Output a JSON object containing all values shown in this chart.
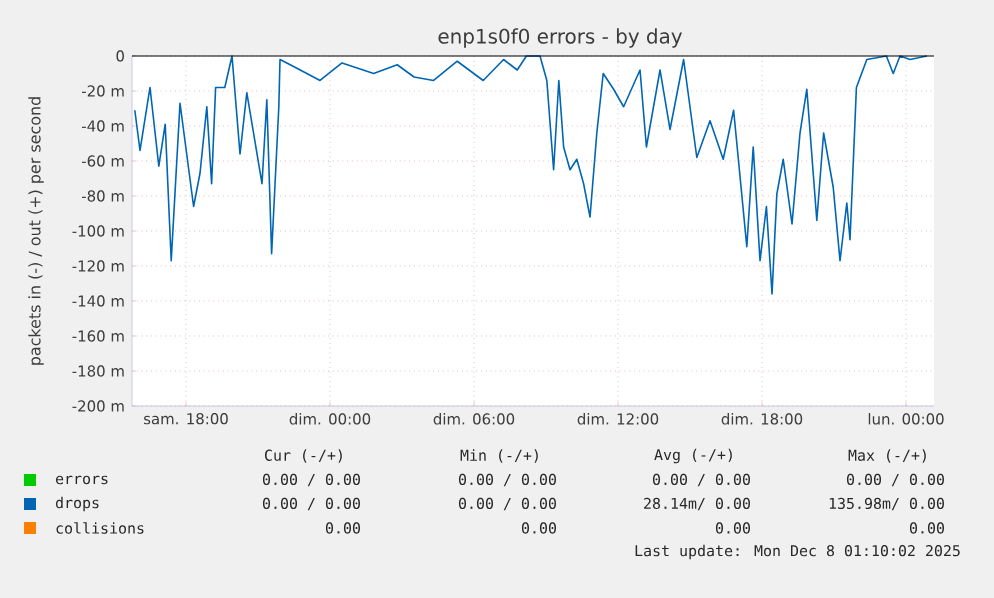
{
  "chart_data": {
    "type": "line",
    "title": "enp1s0f0 errors - by day",
    "ylabel": "packets in (-) / out (+) per second",
    "xlim": [
      "2025-12-06T15:45",
      "2025-12-08T01:10"
    ],
    "ylim": [
      -200,
      0
    ],
    "xticks": [
      {
        "value": "2025-12-06T18:00",
        "label": "sam. 18:00"
      },
      {
        "value": "2025-12-07T00:00",
        "label": "dim. 00:00"
      },
      {
        "value": "2025-12-07T06:00",
        "label": "dim. 06:00"
      },
      {
        "value": "2025-12-07T12:00",
        "label": "dim. 12:00"
      },
      {
        "value": "2025-12-07T18:00",
        "label": "dim. 18:00"
      },
      {
        "value": "2025-12-08T00:00",
        "label": "lun. 00:00"
      }
    ],
    "yticks": [
      0,
      {
        "value": -20,
        "label": "-20 m"
      },
      {
        "value": -40,
        "label": "-40 m"
      },
      {
        "value": -60,
        "label": "-60 m"
      },
      {
        "value": -80,
        "label": "-80 m"
      },
      {
        "value": -100,
        "label": "-100 m"
      },
      {
        "value": -120,
        "label": "-120 m"
      },
      {
        "value": -140,
        "label": "-140 m"
      },
      {
        "value": -160,
        "label": "-160 m"
      },
      {
        "value": -180,
        "label": "-180 m"
      },
      {
        "value": -200,
        "label": "-200 m"
      }
    ],
    "grid": true,
    "legend": "bottom",
    "series": [
      {
        "name": "errors",
        "color": "#00cc00",
        "values": [
          null
        ]
      },
      {
        "name": "drops",
        "color": "#0066b3",
        "x": [
          "2025-12-06T15:52",
          "2025-12-06T16:05",
          "2025-12-06T16:30",
          "2025-12-06T16:52",
          "2025-12-06T17:08",
          "2025-12-06T17:23",
          "2025-12-06T17:45",
          "2025-12-06T18:19",
          "2025-12-06T18:35",
          "2025-12-06T18:52",
          "2025-12-06T19:04",
          "2025-12-06T19:14",
          "2025-12-06T19:37",
          "2025-12-06T19:55",
          "2025-12-06T20:15",
          "2025-12-06T20:32",
          "2025-12-06T21:10",
          "2025-12-06T21:22",
          "2025-12-06T21:34",
          "2025-12-06T21:52",
          "2025-12-06T21:55",
          "2025-12-06T22:29",
          "2025-12-06T23:35",
          "2025-12-07T00:30",
          "2025-12-07T01:49",
          "2025-12-07T02:48",
          "2025-12-07T03:30",
          "2025-12-07T04:19",
          "2025-12-07T05:18",
          "2025-12-07T06:23",
          "2025-12-07T07:14",
          "2025-12-07T07:48",
          "2025-12-07T08:11",
          "2025-12-07T08:45",
          "2025-12-07T09:02",
          "2025-12-07T09:19",
          "2025-12-07T09:32",
          "2025-12-07T09:44",
          "2025-12-07T10:00",
          "2025-12-07T10:17",
          "2025-12-07T10:34",
          "2025-12-07T10:50",
          "2025-12-07T11:07",
          "2025-12-07T11:23",
          "2025-12-07T11:49",
          "2025-12-07T12:14",
          "2025-12-07T12:55",
          "2025-12-07T13:11",
          "2025-12-07T13:45",
          "2025-12-07T14:10",
          "2025-12-07T14:44",
          "2025-12-07T15:17",
          "2025-12-07T15:50",
          "2025-12-07T16:23",
          "2025-12-07T16:49",
          "2025-12-07T17:22",
          "2025-12-07T17:38",
          "2025-12-07T17:55",
          "2025-12-07T18:11",
          "2025-12-07T18:25",
          "2025-12-07T18:37",
          "2025-12-07T18:53",
          "2025-12-07T19:15",
          "2025-12-07T19:35",
          "2025-12-07T19:52",
          "2025-12-07T20:17",
          "2025-12-07T20:34",
          "2025-12-07T20:58",
          "2025-12-07T21:15",
          "2025-12-07T21:32",
          "2025-12-07T21:40",
          "2025-12-07T21:56",
          "2025-12-07T22:22",
          "2025-12-07T23:11",
          "2025-12-07T23:28",
          "2025-12-07T23:45",
          "2025-12-08T00:10",
          "2025-12-08T00:52"
        ],
        "values": [
          -31,
          -54,
          -18,
          -63,
          -39,
          -117,
          -27,
          -86,
          -67,
          -29,
          -73,
          -18,
          -18,
          0,
          -56,
          -21,
          -73,
          -25,
          -113,
          -29,
          -2,
          -6,
          -14,
          -4,
          -10,
          -5,
          -12,
          -14,
          -3,
          -14,
          -2,
          -8,
          0,
          0,
          -14,
          -65,
          -14,
          -52,
          -65,
          -59,
          -73,
          -92,
          -44,
          -10,
          -19,
          -29,
          -8,
          -52,
          -8,
          -42,
          -2,
          -58,
          -37,
          -59,
          -31,
          -109,
          -52,
          -117,
          -86,
          -136,
          -79,
          -59,
          -96,
          -44,
          -19,
          -94,
          -44,
          -75,
          -117,
          -84,
          -105,
          -18,
          -2,
          0,
          -10,
          0,
          -2,
          0
        ]
      },
      {
        "name": "collisions",
        "color": "#ff8000",
        "values": [
          null
        ]
      }
    ],
    "annotations": [
      "Cur (-/+)",
      "Min (-/+)",
      "Avg (-/+)",
      "Max (-/+)",
      "0.00 /  0.00",
      "0.00 /  0.00",
      "0.00 /  0.00",
      "0.00 /  0.00",
      "0.00 /  0.00",
      "0.00 /  0.00",
      "28.14m/  0.00",
      "135.98m/  0.00",
      "0.00",
      "0.00",
      "0.00",
      "0.00",
      "Last update: Mon Dec  8 01:10:02 2025"
    ]
  }
}
